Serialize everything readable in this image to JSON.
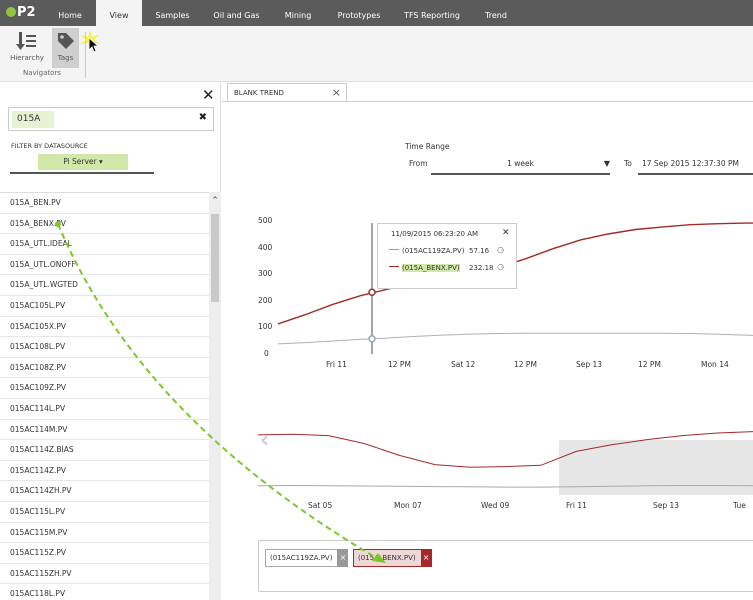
{
  "app": {
    "logo": "P2"
  },
  "tabs": [
    "Home",
    "View",
    "Samples",
    "Oil and Gas",
    "Mining",
    "Prototypes",
    "TFS Reporting",
    "Trend"
  ],
  "ribbon": {
    "hierarchy_label": "Hierarchy",
    "tags_label": "Tags",
    "group_label": "Navigators"
  },
  "left_panel": {
    "search_value": "015A",
    "filter_label": "FILTER BY DATASOURCE",
    "datasource": "Pi Server",
    "tags": [
      "015A_BEN.PV",
      "015A_BENX.PV",
      "015A_UTL.IDEAL",
      "015A_UTL.ONOFF",
      "015A_UTL.WGTED",
      "015AC105L.PV",
      "015AC105X.PV",
      "015AC108L.PV",
      "015AC108Z.PV",
      "015AC109Z.PV",
      "015AC114L.PV",
      "015AC114M.PV",
      "015AC114Z.BIAS",
      "015AC114Z.PV",
      "015AC114ZH.PV",
      "015AC115L.PV",
      "015AC115M.PV",
      "015AC115Z.PV",
      "015AC115ZH.PV",
      "015AC118L.PV"
    ]
  },
  "trend": {
    "tab_title": "BLANK TREND",
    "time_range_label": "Time Range",
    "from_label": "From",
    "from_value": "1 week",
    "to_label": "To",
    "to_value": "17 Sep 2015 12:37:30 PM",
    "tooltip": {
      "date": "11/09/2015 06:23:20 AM",
      "rows": [
        {
          "name": "(015AC119ZA.PV)",
          "value": "57.16"
        },
        {
          "name": "(015A_BENX.PV)",
          "value": "232.18"
        }
      ]
    },
    "chips": [
      "(015AC119ZA.PV)",
      "(015A_BENX.PV)"
    ],
    "colors": {
      "series1": "#b0b0b0",
      "series2": "#a32a2a",
      "highlight": "#d2e8a8",
      "drag": "#7dc728"
    }
  },
  "chart_data": [
    {
      "type": "line",
      "ylim": [
        0,
        500
      ],
      "yticks": [
        0,
        100,
        200,
        300,
        400,
        500
      ],
      "x_tick_labels": [
        "Fri 11",
        "12 PM",
        "Sat 12",
        "12 PM",
        "Sep 13",
        "12 PM",
        "Mon 14"
      ],
      "series": [
        {
          "name": "(015AC119ZA.PV)",
          "x": [
            0,
            0.25,
            0.5,
            0.75,
            1,
            1.25,
            1.5,
            1.75,
            2,
            2.25,
            2.5,
            2.75,
            3,
            3.25,
            3.5,
            3.75,
            4,
            4.25,
            4.5
          ],
          "values": [
            38,
            43,
            49,
            55,
            60,
            66,
            71,
            75,
            77,
            78,
            78,
            78,
            78,
            78,
            78,
            77,
            74,
            71,
            68
          ]
        },
        {
          "name": "(015A_BENX.PV)",
          "x": [
            0,
            0.25,
            0.5,
            0.75,
            1,
            1.25,
            1.5,
            1.75,
            2,
            2.25,
            2.5,
            2.75,
            3,
            3.25,
            3.5,
            3.75,
            4,
            4.25,
            4.5
          ],
          "values": [
            113,
            148,
            187,
            219,
            244,
            268,
            282,
            302,
            325,
            358,
            396,
            429,
            451,
            468,
            478,
            486,
            490,
            492,
            492
          ]
        }
      ]
    },
    {
      "type": "line",
      "x_tick_labels": [
        "Sat 05",
        "Mon 07",
        "Wed 09",
        "Fri 11",
        "Sep 13",
        "Tue"
      ],
      "series": [
        {
          "name": "(015A_BENX.PV)",
          "values": [
            455,
            460,
            450,
            390,
            300,
            230,
            210,
            215,
            225,
            330,
            380,
            420,
            450,
            470,
            480
          ]
        },
        {
          "name": "(015AC119ZA.PV)",
          "values": [
            70,
            72,
            70,
            68,
            66,
            64,
            62,
            60,
            60,
            62,
            66,
            70,
            72,
            72,
            70
          ]
        }
      ]
    }
  ]
}
